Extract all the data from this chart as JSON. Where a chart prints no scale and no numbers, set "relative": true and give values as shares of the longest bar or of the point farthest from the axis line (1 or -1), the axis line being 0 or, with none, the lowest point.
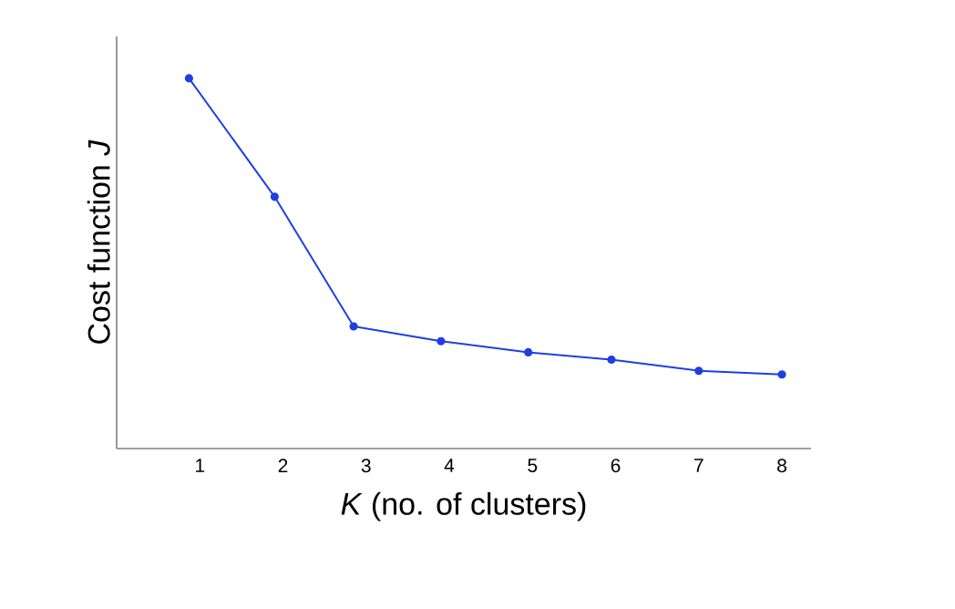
{
  "chart_data": {
    "type": "line",
    "xlabel": "*K* (no. of clusters)",
    "ylabel": "Cost function *J*",
    "relative": true,
    "x": [
      0.87,
      1.9,
      2.85,
      3.9,
      4.95,
      5.95,
      7,
      8
    ],
    "series": [
      {
        "color": "#1f3fe0",
        "values": [
          1,
          0.68,
          0.33,
          0.29,
          0.26,
          0.24,
          0.21,
          0.2
        ]
      }
    ],
    "xlim": [
      0,
      8.35
    ],
    "xticks": [
      1,
      2,
      3,
      4,
      5,
      6,
      7,
      8
    ],
    "marker": "circle",
    "line_style": "solid",
    "grid": false
  }
}
